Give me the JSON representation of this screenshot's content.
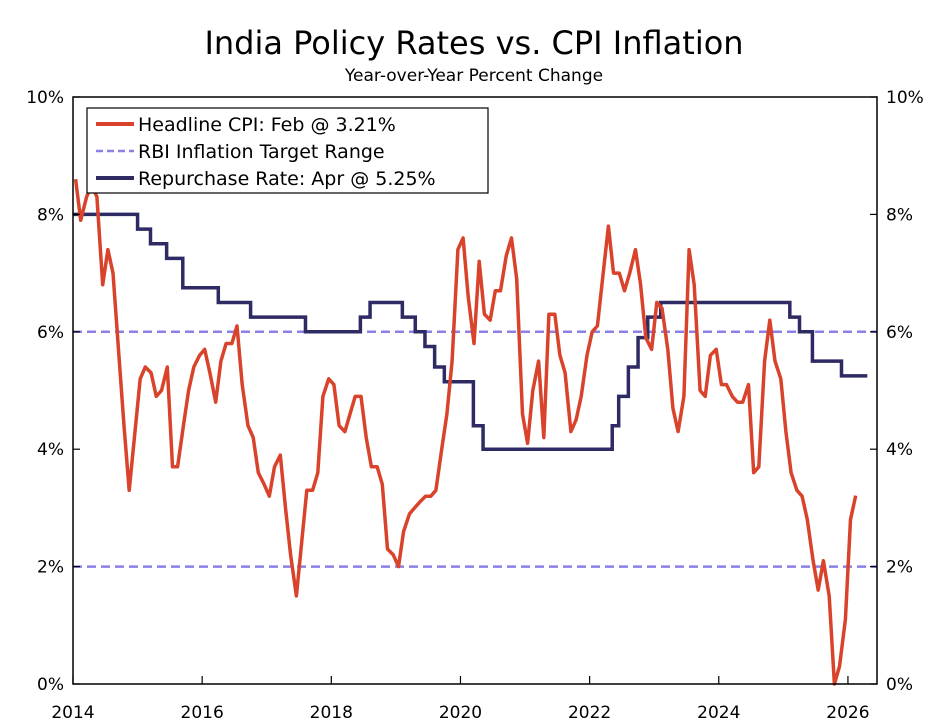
{
  "chart_data": {
    "type": "line",
    "title": "India Policy Rates vs. CPI Inflation",
    "subtitle": "Year-over-Year Percent Change",
    "xlabel": "",
    "ylabel": "",
    "xlim": [
      2014.0,
      2026.45
    ],
    "ylim": [
      0,
      10
    ],
    "x_ticks": [
      2014,
      2016,
      2018,
      2020,
      2022,
      2024,
      2026
    ],
    "x_tick_labels": [
      "2014",
      "2016",
      "2018",
      "2020",
      "2022",
      "2024",
      "2026"
    ],
    "y_ticks": [
      0,
      2,
      4,
      6,
      8,
      10
    ],
    "y_tick_labels": [
      "0%",
      "2%",
      "4%",
      "6%",
      "8%",
      "10%"
    ],
    "legend_position": "top-left",
    "target_range": [
      2,
      6
    ],
    "series": [
      {
        "name": "Headline CPI",
        "legend": "Headline CPI: Feb @ 3.21%",
        "color": "#D9432B",
        "style": "solid",
        "x": [
          2014.04,
          2014.12,
          2014.21,
          2014.29,
          2014.37,
          2014.46,
          2014.54,
          2014.62,
          2014.71,
          2014.79,
          2014.87,
          2014.96,
          2015.04,
          2015.12,
          2015.21,
          2015.29,
          2015.37,
          2015.46,
          2015.54,
          2015.62,
          2015.71,
          2015.79,
          2015.87,
          2015.96,
          2016.04,
          2016.12,
          2016.21,
          2016.29,
          2016.37,
          2016.46,
          2016.54,
          2016.62,
          2016.71,
          2016.79,
          2016.87,
          2016.96,
          2017.04,
          2017.12,
          2017.21,
          2017.29,
          2017.37,
          2017.46,
          2017.54,
          2017.62,
          2017.71,
          2017.79,
          2017.87,
          2017.96,
          2018.04,
          2018.12,
          2018.21,
          2018.29,
          2018.37,
          2018.46,
          2018.54,
          2018.62,
          2018.71,
          2018.79,
          2018.87,
          2018.96,
          2019.04,
          2019.12,
          2019.21,
          2019.29,
          2019.37,
          2019.46,
          2019.54,
          2019.62,
          2019.71,
          2019.79,
          2019.87,
          2019.96,
          2020.04,
          2020.12,
          2020.21,
          2020.29,
          2020.37,
          2020.46,
          2020.54,
          2020.62,
          2020.71,
          2020.79,
          2020.87,
          2020.96,
          2021.04,
          2021.12,
          2021.21,
          2021.29,
          2021.37,
          2021.46,
          2021.54,
          2021.62,
          2021.71,
          2021.79,
          2021.87,
          2021.96,
          2022.04,
          2022.12,
          2022.21,
          2022.29,
          2022.37,
          2022.46,
          2022.54,
          2022.62,
          2022.71,
          2022.79,
          2022.87,
          2022.96,
          2023.04,
          2023.12,
          2023.21,
          2023.29,
          2023.37,
          2023.46,
          2023.54,
          2023.62,
          2023.71,
          2023.79,
          2023.87,
          2023.96,
          2024.04,
          2024.12,
          2024.21,
          2024.29,
          2024.37,
          2024.46,
          2024.54,
          2024.62,
          2024.71,
          2024.79,
          2024.87,
          2024.96,
          2025.04,
          2025.12,
          2025.21,
          2025.29,
          2025.37,
          2025.46,
          2025.54,
          2025.62,
          2025.71,
          2025.79,
          2025.87,
          2025.96,
          2026.04,
          2026.12
        ],
        "values": [
          8.6,
          7.9,
          8.3,
          8.5,
          8.3,
          6.8,
          7.4,
          7.0,
          5.6,
          4.4,
          3.3,
          4.3,
          5.2,
          5.4,
          5.3,
          4.9,
          5.0,
          5.4,
          3.7,
          3.7,
          4.4,
          5.0,
          5.4,
          5.6,
          5.7,
          5.3,
          4.8,
          5.5,
          5.8,
          5.8,
          6.1,
          5.1,
          4.4,
          4.2,
          3.6,
          3.4,
          3.2,
          3.7,
          3.9,
          3.0,
          2.2,
          1.5,
          2.4,
          3.3,
          3.3,
          3.6,
          4.9,
          5.2,
          5.1,
          4.4,
          4.3,
          4.6,
          4.9,
          4.9,
          4.2,
          3.7,
          3.7,
          3.4,
          2.3,
          2.2,
          2.0,
          2.6,
          2.9,
          3.0,
          3.1,
          3.2,
          3.2,
          3.3,
          4.0,
          4.6,
          5.5,
          7.4,
          7.6,
          6.6,
          5.8,
          7.2,
          6.3,
          6.2,
          6.7,
          6.7,
          7.3,
          7.6,
          6.9,
          4.6,
          4.1,
          5.0,
          5.5,
          4.2,
          6.3,
          6.3,
          5.6,
          5.3,
          4.3,
          4.5,
          4.9,
          5.6,
          6.0,
          6.1,
          7.0,
          7.8,
          7.0,
          7.0,
          6.7,
          7.0,
          7.4,
          6.8,
          5.9,
          5.7,
          6.5,
          6.4,
          5.7,
          4.7,
          4.3,
          4.9,
          7.4,
          6.8,
          5.0,
          4.9,
          5.6,
          5.7,
          5.1,
          5.1,
          4.9,
          4.8,
          4.8,
          5.1,
          3.6,
          3.7,
          5.5,
          6.2,
          5.5,
          5.2,
          4.3,
          3.6,
          3.3,
          3.2,
          2.8,
          2.1,
          1.6,
          2.1,
          1.5,
          0.0,
          0.3,
          1.1,
          2.8,
          3.21
        ]
      },
      {
        "name": "RBI Inflation Target Range",
        "legend": "RBI Inflation Target Range",
        "color": "#8A80E6",
        "style": "dashed",
        "values": [
          2,
          6
        ]
      },
      {
        "name": "Repurchase Rate",
        "legend": "Repurchase Rate: Apr @ 5.25%",
        "color": "#2E2A63",
        "style": "solid",
        "steps": [
          [
            2014.0,
            8.0
          ],
          [
            2015.0,
            7.75
          ],
          [
            2015.2,
            7.5
          ],
          [
            2015.45,
            7.25
          ],
          [
            2015.7,
            6.75
          ],
          [
            2016.25,
            6.5
          ],
          [
            2016.75,
            6.25
          ],
          [
            2017.6,
            6.0
          ],
          [
            2018.45,
            6.25
          ],
          [
            2018.6,
            6.5
          ],
          [
            2019.1,
            6.25
          ],
          [
            2019.3,
            6.0
          ],
          [
            2019.45,
            5.75
          ],
          [
            2019.6,
            5.4
          ],
          [
            2019.75,
            5.15
          ],
          [
            2020.2,
            4.4
          ],
          [
            2020.35,
            4.0
          ],
          [
            2022.35,
            4.4
          ],
          [
            2022.45,
            4.9
          ],
          [
            2022.6,
            5.4
          ],
          [
            2022.75,
            5.9
          ],
          [
            2022.9,
            6.25
          ],
          [
            2023.1,
            6.5
          ],
          [
            2025.1,
            6.25
          ],
          [
            2025.25,
            6.0
          ],
          [
            2025.45,
            5.5
          ],
          [
            2025.9,
            5.25
          ],
          [
            2026.3,
            5.25
          ]
        ]
      }
    ]
  }
}
